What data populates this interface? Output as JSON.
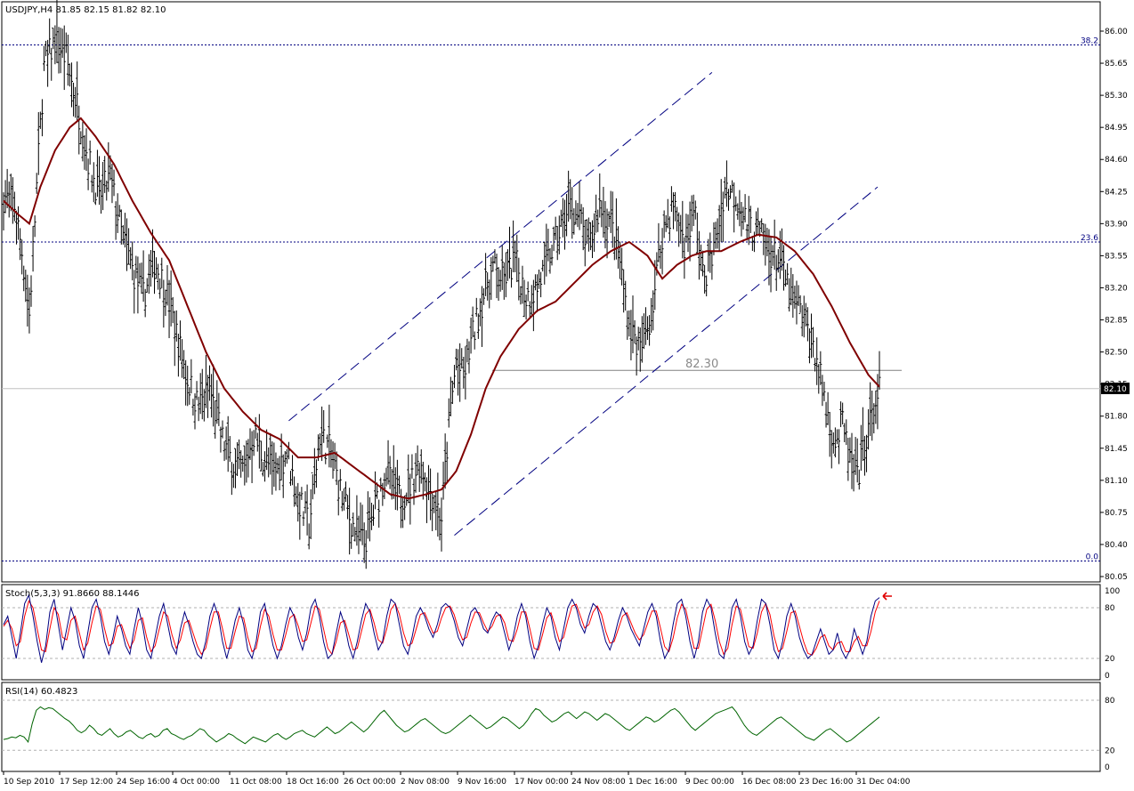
{
  "header": {
    "main_label": "USDJPY,H4  81.85 82.15 81.82 82.10",
    "stoch_label": "Stoch(5,3,3) 91.8660 88.1446",
    "rsi_label": "RSI(14) 60.4823"
  },
  "chart_data": [
    {
      "type": "ohlc",
      "symbol": "USDJPY",
      "timeframe": "H4",
      "last_ohlc": {
        "open": 81.85,
        "high": 82.15,
        "low": 81.82,
        "close": 82.1
      },
      "ylim": [
        79.95,
        86.2
      ],
      "y_ticks": [
        "86.00",
        "85.65",
        "85.30",
        "84.95",
        "84.60",
        "84.25",
        "83.90",
        "83.55",
        "83.20",
        "82.85",
        "82.50",
        "82.15",
        "81.80",
        "81.45",
        "81.10",
        "80.75",
        "80.40",
        "80.05"
      ],
      "x_ticks": [
        "10 Sep 2010",
        "17 Sep 12:00",
        "24 Sep 16:00",
        "4 Oct 00:00",
        "11 Oct 08:00",
        "18 Oct 16:00",
        "26 Oct 00:00",
        "2 Nov 08:00",
        "9 Nov 16:00",
        "17 Nov 00:00",
        "24 Nov 08:00",
        "1 Dec 16:00",
        "9 Dec 00:00",
        "16 Dec 08:00",
        "23 Dec 16:00",
        "31 Dec 04:00"
      ],
      "current_price_label": "82.10",
      "fibonacci_levels": [
        {
          "label": "38.2",
          "price": 85.85
        },
        {
          "label": "23.6",
          "price": 83.7
        },
        {
          "label": "0.0",
          "price": 80.22
        }
      ],
      "support_line": {
        "label": "82.30",
        "price": 82.3
      },
      "price_path": [
        {
          "i": 0,
          "p": 84.2
        },
        {
          "i": 6,
          "p": 84.1
        },
        {
          "i": 10,
          "p": 83.6
        },
        {
          "i": 14,
          "p": 82.9
        },
        {
          "i": 18,
          "p": 84.3
        },
        {
          "i": 22,
          "p": 85.6
        },
        {
          "i": 28,
          "p": 85.9
        },
        {
          "i": 34,
          "p": 85.7
        },
        {
          "i": 40,
          "p": 85.2
        },
        {
          "i": 46,
          "p": 84.6
        },
        {
          "i": 52,
          "p": 84.2
        },
        {
          "i": 58,
          "p": 84.4
        },
        {
          "i": 64,
          "p": 83.8
        },
        {
          "i": 70,
          "p": 83.4
        },
        {
          "i": 76,
          "p": 83.1
        },
        {
          "i": 82,
          "p": 83.5
        },
        {
          "i": 88,
          "p": 83.2
        },
        {
          "i": 94,
          "p": 82.7
        },
        {
          "i": 100,
          "p": 82.2
        },
        {
          "i": 106,
          "p": 81.9
        },
        {
          "i": 112,
          "p": 82.1
        },
        {
          "i": 118,
          "p": 81.6
        },
        {
          "i": 124,
          "p": 81.3
        },
        {
          "i": 130,
          "p": 81.2
        },
        {
          "i": 136,
          "p": 81.6
        },
        {
          "i": 142,
          "p": 81.3
        },
        {
          "i": 148,
          "p": 81.2
        },
        {
          "i": 154,
          "p": 81.4
        },
        {
          "i": 160,
          "p": 80.9
        },
        {
          "i": 166,
          "p": 80.6
        },
        {
          "i": 172,
          "p": 81.6
        },
        {
          "i": 178,
          "p": 81.4
        },
        {
          "i": 184,
          "p": 80.9
        },
        {
          "i": 190,
          "p": 80.6
        },
        {
          "i": 196,
          "p": 80.4
        },
        {
          "i": 202,
          "p": 80.8
        },
        {
          "i": 208,
          "p": 81.2
        },
        {
          "i": 214,
          "p": 80.9
        },
        {
          "i": 220,
          "p": 81.0
        },
        {
          "i": 226,
          "p": 81.3
        },
        {
          "i": 232,
          "p": 81.0
        },
        {
          "i": 238,
          "p": 80.7
        },
        {
          "i": 242,
          "p": 81.7
        },
        {
          "i": 246,
          "p": 82.4
        },
        {
          "i": 250,
          "p": 82.2
        },
        {
          "i": 254,
          "p": 82.6
        },
        {
          "i": 258,
          "p": 82.9
        },
        {
          "i": 262,
          "p": 83.2
        },
        {
          "i": 266,
          "p": 83.4
        },
        {
          "i": 272,
          "p": 83.3
        },
        {
          "i": 278,
          "p": 83.5
        },
        {
          "i": 284,
          "p": 83.1
        },
        {
          "i": 290,
          "p": 83.2
        },
        {
          "i": 296,
          "p": 83.5
        },
        {
          "i": 302,
          "p": 83.8
        },
        {
          "i": 308,
          "p": 84.1
        },
        {
          "i": 314,
          "p": 83.9
        },
        {
          "i": 318,
          "p": 83.6
        },
        {
          "i": 324,
          "p": 84.1
        },
        {
          "i": 330,
          "p": 83.9
        },
        {
          "i": 334,
          "p": 83.6
        },
        {
          "i": 340,
          "p": 82.8
        },
        {
          "i": 346,
          "p": 82.5
        },
        {
          "i": 352,
          "p": 82.9
        },
        {
          "i": 358,
          "p": 83.8
        },
        {
          "i": 364,
          "p": 84.1
        },
        {
          "i": 370,
          "p": 83.7
        },
        {
          "i": 376,
          "p": 84.0
        },
        {
          "i": 380,
          "p": 83.3
        },
        {
          "i": 386,
          "p": 83.6
        },
        {
          "i": 392,
          "p": 84.3
        },
        {
          "i": 398,
          "p": 84.2
        },
        {
          "i": 404,
          "p": 83.9
        },
        {
          "i": 410,
          "p": 83.8
        },
        {
          "i": 416,
          "p": 83.6
        },
        {
          "i": 422,
          "p": 83.5
        },
        {
          "i": 428,
          "p": 83.1
        },
        {
          "i": 434,
          "p": 82.9
        },
        {
          "i": 440,
          "p": 82.6
        },
        {
          "i": 444,
          "p": 82.2
        },
        {
          "i": 448,
          "p": 81.8
        },
        {
          "i": 452,
          "p": 81.5
        },
        {
          "i": 456,
          "p": 81.7
        },
        {
          "i": 460,
          "p": 81.3
        },
        {
          "i": 464,
          "p": 81.1
        },
        {
          "i": 468,
          "p": 81.5
        },
        {
          "i": 472,
          "p": 81.8
        },
        {
          "i": 476,
          "p": 82.1
        }
      ],
      "moving_average_path": [
        {
          "i": 0,
          "p": 84.15
        },
        {
          "i": 8,
          "p": 84.0
        },
        {
          "i": 14,
          "p": 83.9
        },
        {
          "i": 20,
          "p": 84.3
        },
        {
          "i": 28,
          "p": 84.7
        },
        {
          "i": 36,
          "p": 84.95
        },
        {
          "i": 42,
          "p": 85.05
        },
        {
          "i": 50,
          "p": 84.85
        },
        {
          "i": 60,
          "p": 84.55
        },
        {
          "i": 70,
          "p": 84.15
        },
        {
          "i": 80,
          "p": 83.8
        },
        {
          "i": 90,
          "p": 83.5
        },
        {
          "i": 100,
          "p": 83.0
        },
        {
          "i": 110,
          "p": 82.5
        },
        {
          "i": 120,
          "p": 82.1
        },
        {
          "i": 130,
          "p": 81.85
        },
        {
          "i": 140,
          "p": 81.65
        },
        {
          "i": 150,
          "p": 81.55
        },
        {
          "i": 160,
          "p": 81.35
        },
        {
          "i": 170,
          "p": 81.35
        },
        {
          "i": 180,
          "p": 81.4
        },
        {
          "i": 190,
          "p": 81.25
        },
        {
          "i": 200,
          "p": 81.1
        },
        {
          "i": 210,
          "p": 80.95
        },
        {
          "i": 220,
          "p": 80.9
        },
        {
          "i": 230,
          "p": 80.95
        },
        {
          "i": 238,
          "p": 81.0
        },
        {
          "i": 246,
          "p": 81.2
        },
        {
          "i": 254,
          "p": 81.6
        },
        {
          "i": 262,
          "p": 82.1
        },
        {
          "i": 270,
          "p": 82.45
        },
        {
          "i": 280,
          "p": 82.75
        },
        {
          "i": 290,
          "p": 82.95
        },
        {
          "i": 300,
          "p": 83.05
        },
        {
          "i": 310,
          "p": 83.25
        },
        {
          "i": 320,
          "p": 83.45
        },
        {
          "i": 330,
          "p": 83.6
        },
        {
          "i": 340,
          "p": 83.7
        },
        {
          "i": 350,
          "p": 83.55
        },
        {
          "i": 358,
          "p": 83.3
        },
        {
          "i": 366,
          "p": 83.45
        },
        {
          "i": 374,
          "p": 83.55
        },
        {
          "i": 382,
          "p": 83.6
        },
        {
          "i": 390,
          "p": 83.6
        },
        {
          "i": 400,
          "p": 83.7
        },
        {
          "i": 410,
          "p": 83.78
        },
        {
          "i": 420,
          "p": 83.75
        },
        {
          "i": 430,
          "p": 83.6
        },
        {
          "i": 440,
          "p": 83.35
        },
        {
          "i": 450,
          "p": 83.0
        },
        {
          "i": 460,
          "p": 82.6
        },
        {
          "i": 470,
          "p": 82.25
        },
        {
          "i": 476,
          "p": 82.12
        }
      ],
      "channel_lines": [
        {
          "from": {
            "i": 155,
            "p": 81.75
          },
          "to": {
            "i": 385,
            "p": 85.55
          }
        },
        {
          "from": {
            "i": 245,
            "p": 80.5
          },
          "to": {
            "i": 475,
            "p": 84.3
          }
        }
      ]
    },
    {
      "type": "line",
      "name": "Stoch(5,3,3)",
      "main_value": 91.866,
      "signal_value": 88.1446,
      "y_ticks": [
        "100",
        "80",
        "20",
        "0"
      ],
      "ylim": [
        0,
        100
      ],
      "levels": [
        80,
        20
      ],
      "main": [
        60,
        70,
        45,
        20,
        50,
        85,
        95,
        70,
        40,
        15,
        35,
        75,
        90,
        60,
        30,
        55,
        80,
        65,
        35,
        20,
        50,
        80,
        90,
        70,
        40,
        25,
        45,
        70,
        55,
        35,
        25,
        55,
        80,
        60,
        30,
        20,
        45,
        70,
        85,
        60,
        35,
        25,
        55,
        75,
        60,
        40,
        25,
        20,
        40,
        70,
        85,
        70,
        40,
        20,
        40,
        65,
        80,
        60,
        30,
        20,
        40,
        75,
        85,
        60,
        35,
        20,
        35,
        60,
        80,
        70,
        45,
        30,
        50,
        80,
        90,
        70,
        40,
        20,
        25,
        50,
        75,
        60,
        35,
        20,
        40,
        65,
        85,
        75,
        50,
        30,
        40,
        70,
        90,
        85,
        60,
        35,
        25,
        45,
        70,
        80,
        70,
        55,
        45,
        60,
        80,
        85,
        80,
        65,
        45,
        35,
        55,
        75,
        80,
        70,
        55,
        50,
        65,
        75,
        70,
        50,
        30,
        45,
        70,
        85,
        70,
        40,
        20,
        35,
        60,
        80,
        70,
        45,
        30,
        55,
        80,
        90,
        80,
        60,
        50,
        70,
        85,
        80,
        60,
        40,
        30,
        45,
        65,
        80,
        70,
        55,
        45,
        35,
        55,
        75,
        85,
        70,
        40,
        20,
        30,
        60,
        85,
        90,
        70,
        40,
        20,
        40,
        75,
        90,
        80,
        50,
        25,
        20,
        45,
        80,
        90,
        70,
        40,
        25,
        35,
        65,
        90,
        85,
        60,
        30,
        20,
        40,
        70,
        85,
        70,
        45,
        30,
        20,
        25,
        40,
        55,
        40,
        25,
        30,
        50,
        30,
        20,
        30,
        55,
        40,
        25,
        40,
        70,
        88,
        92
      ],
      "signal": [
        58,
        65,
        55,
        35,
        40,
        70,
        88,
        80,
        55,
        30,
        28,
        55,
        80,
        72,
        45,
        42,
        65,
        70,
        50,
        30,
        38,
        62,
        82,
        78,
        55,
        35,
        38,
        58,
        60,
        45,
        32,
        42,
        65,
        68,
        45,
        28,
        35,
        55,
        75,
        70,
        48,
        32,
        42,
        62,
        65,
        50,
        35,
        25,
        32,
        55,
        75,
        75,
        55,
        32,
        32,
        52,
        70,
        68,
        45,
        28,
        32,
        58,
        78,
        70,
        48,
        30,
        30,
        48,
        68,
        72,
        58,
        40,
        42,
        62,
        82,
        78,
        55,
        32,
        25,
        40,
        62,
        65,
        48,
        30,
        32,
        52,
        72,
        78,
        62,
        42,
        38,
        55,
        78,
        85,
        72,
        50,
        35,
        38,
        55,
        72,
        74,
        62,
        50,
        52,
        68,
        80,
        82,
        72,
        55,
        42,
        45,
        62,
        75,
        74,
        62,
        52,
        58,
        70,
        72,
        62,
        42,
        40,
        55,
        75,
        75,
        55,
        32,
        30,
        48,
        68,
        74,
        58,
        40,
        45,
        65,
        82,
        84,
        70,
        56,
        60,
        75,
        82,
        72,
        52,
        38,
        40,
        55,
        70,
        74,
        62,
        50,
        42,
        48,
        62,
        76,
        76,
        56,
        34,
        28,
        44,
        68,
        84,
        78,
        56,
        32,
        32,
        55,
        78,
        84,
        65,
        40,
        25,
        32,
        60,
        82,
        78,
        56,
        34,
        32,
        50,
        75,
        85,
        72,
        46,
        28,
        32,
        52,
        74,
        76,
        58,
        40,
        26,
        24,
        32,
        45,
        48,
        35,
        30,
        38,
        40,
        28,
        28,
        40,
        46,
        35,
        35,
        52,
        75,
        88
      ]
    },
    {
      "type": "line",
      "name": "RSI(14)",
      "last_value": 60.4823,
      "y_ticks": [
        "80",
        "20",
        "0"
      ],
      "ylim": [
        0,
        100
      ],
      "levels": [
        80,
        20
      ],
      "values": [
        33,
        34,
        36,
        35,
        38,
        36,
        30,
        52,
        68,
        72,
        69,
        71,
        70,
        66,
        62,
        58,
        55,
        50,
        44,
        41,
        44,
        50,
        46,
        40,
        38,
        42,
        46,
        40,
        36,
        38,
        42,
        44,
        40,
        36,
        34,
        38,
        40,
        36,
        38,
        44,
        46,
        40,
        38,
        35,
        33,
        36,
        38,
        42,
        46,
        44,
        38,
        34,
        30,
        33,
        36,
        40,
        38,
        34,
        31,
        28,
        32,
        36,
        34,
        32,
        30,
        34,
        38,
        40,
        36,
        33,
        36,
        40,
        42,
        44,
        40,
        38,
        36,
        40,
        44,
        48,
        44,
        40,
        42,
        46,
        50,
        54,
        50,
        46,
        42,
        46,
        52,
        58,
        64,
        68,
        62,
        56,
        50,
        46,
        42,
        44,
        48,
        52,
        56,
        58,
        54,
        50,
        46,
        42,
        40,
        42,
        46,
        50,
        54,
        58,
        62,
        58,
        54,
        50,
        46,
        48,
        52,
        56,
        60,
        58,
        54,
        50,
        46,
        50,
        56,
        64,
        70,
        68,
        62,
        58,
        54,
        56,
        60,
        64,
        66,
        62,
        58,
        62,
        66,
        64,
        60,
        56,
        60,
        64,
        62,
        58,
        54,
        50,
        46,
        44,
        48,
        52,
        56,
        60,
        58,
        54,
        56,
        60,
        64,
        68,
        70,
        66,
        60,
        54,
        48,
        44,
        48,
        52,
        56,
        60,
        64,
        66,
        68,
        70,
        72,
        66,
        58,
        50,
        44,
        40,
        38,
        42,
        46,
        50,
        54,
        58,
        60,
        56,
        52,
        48,
        44,
        40,
        36,
        34,
        32,
        36,
        40,
        44,
        46,
        42,
        38,
        34,
        30,
        32,
        36,
        40,
        44,
        48,
        52,
        56,
        60
      ]
    }
  ]
}
